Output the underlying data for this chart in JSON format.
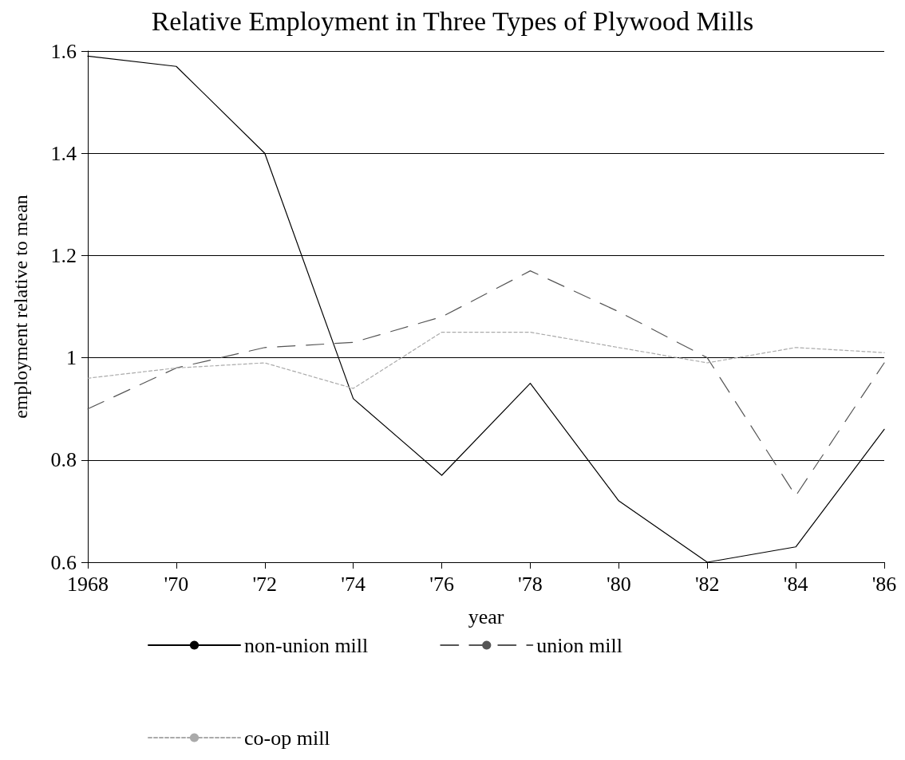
{
  "chart_data": {
    "type": "line",
    "title": "Relative Employment in Three Types of Plywood Mills",
    "xlabel": "year",
    "ylabel": "employment relative to mean",
    "x": [
      1968,
      1970,
      1972,
      1974,
      1976,
      1978,
      1980,
      1982,
      1984,
      1986
    ],
    "series": [
      {
        "name": "non-union mill",
        "color": "#000000",
        "line_style": "solid",
        "values": [
          1.59,
          1.57,
          1.4,
          0.92,
          0.77,
          0.95,
          0.72,
          0.6,
          0.63,
          0.86
        ]
      },
      {
        "name": "union mill",
        "color": "#555555",
        "line_style": "dashed",
        "values": [
          0.9,
          0.98,
          1.02,
          1.03,
          1.08,
          1.17,
          1.09,
          1.0,
          0.73,
          0.99
        ]
      },
      {
        "name": "co-op mill",
        "color": "#aaaaaa",
        "line_style": "dotted",
        "values": [
          0.96,
          0.98,
          0.99,
          0.94,
          1.05,
          1.05,
          1.02,
          0.99,
          1.02,
          1.01
        ]
      }
    ],
    "xlim": [
      1968,
      1986
    ],
    "xticks": [
      1968,
      {
        "value": 1970,
        "label": "'70"
      },
      {
        "value": 1972,
        "label": "'72"
      },
      {
        "value": 1974,
        "label": "'74"
      },
      {
        "value": 1976,
        "label": "'76"
      },
      {
        "value": 1978,
        "label": "'78"
      },
      {
        "value": 1980,
        "label": "'80"
      },
      {
        "value": 1982,
        "label": "'82"
      },
      {
        "value": 1984,
        "label": "'84"
      },
      {
        "value": 1986,
        "label": "'86"
      }
    ],
    "ylim": [
      0.6,
      1.6
    ],
    "yticks": [
      0.6,
      0.8,
      1,
      1.2,
      1.4,
      1.6
    ],
    "grid": "y",
    "legend": "bottom",
    "marker": "none"
  }
}
